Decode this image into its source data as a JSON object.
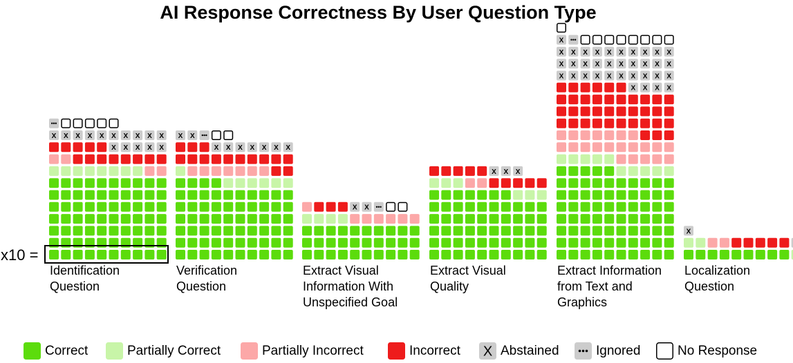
{
  "chart_data": {
    "type": "waffle",
    "title": "AI Response Correctness By User Question Type",
    "scale_label": "x10 =",
    "unit_per_square": 1,
    "categories_order": [
      "correct",
      "partially_correct",
      "partially_incorrect",
      "incorrect",
      "abstained",
      "ignored",
      "no_response"
    ],
    "legend": [
      {
        "key": "correct",
        "label": "Correct",
        "color": "#5cdc0c"
      },
      {
        "key": "partially_correct",
        "label": "Partially Correct",
        "color": "#c8f5a8"
      },
      {
        "key": "partially_incorrect",
        "label": "Partially Incorrect",
        "color": "#fca8a8"
      },
      {
        "key": "incorrect",
        "label": "Incorrect",
        "color": "#ee1c1c"
      },
      {
        "key": "abstained",
        "label": "Abstained",
        "color": "#cccccc",
        "symbol": "X"
      },
      {
        "key": "ignored",
        "label": "Ignored",
        "color": "#cccccc",
        "symbol": "•••"
      },
      {
        "key": "no_response",
        "label": "No Response",
        "color": "#ffffff"
      }
    ],
    "groups": [
      {
        "label_lines": [
          "Identification",
          "Question"
        ],
        "counts": [
          70,
          8,
          4,
          13,
          15,
          1,
          5
        ]
      },
      {
        "label_lines": [
          "Verification",
          "Question"
        ],
        "counts": [
          64,
          7,
          7,
          15,
          9,
          1,
          2
        ]
      },
      {
        "label_lines": [
          "Extract Visual",
          "Information With",
          "Unspecified Goal"
        ],
        "counts": [
          30,
          4,
          7,
          3,
          2,
          1,
          2
        ]
      },
      {
        "label_lines": [
          "Extract Visual",
          "Quality"
        ],
        "counts": [
          57,
          6,
          2,
          10,
          3,
          0,
          0
        ]
      },
      {
        "label_lines": [
          "Extract Information",
          "from Text and",
          "Graphics"
        ],
        "counts": [
          75,
          10,
          22,
          39,
          35,
          1,
          9
        ]
      },
      {
        "label_lines": [
          "Localization",
          "Question"
        ],
        "counts": [
          9,
          3,
          2,
          5,
          2,
          0,
          0
        ]
      }
    ]
  }
}
